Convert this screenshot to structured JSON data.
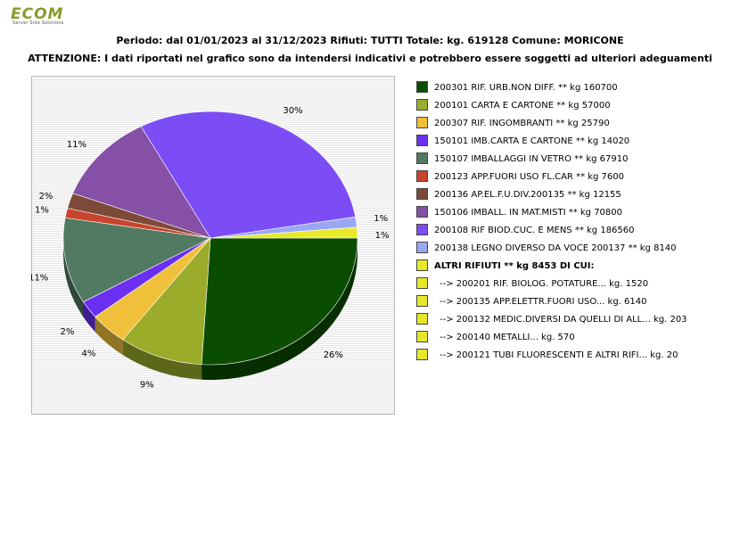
{
  "header": {
    "logo_text": "ECOM",
    "logo_sub": "Server Side Solutions",
    "title_line1": "Periodo: dal 01/01/2023 al 31/12/2023 Rifiuti: TUTTI   Totale: kg. 619128    Comune: MORICONE",
    "title_line2": "ATTENZIONE: I dati riportati nel grafico sono da intendersi indicativi e potrebbero essere soggetti ad ulteriori adeguamenti"
  },
  "chart_data": {
    "type": "pie",
    "title": "Periodo: dal 01/01/2023 al 31/12/2023 Rifiuti: TUTTI   Totale: kg. 619128    Comune: MORICONE",
    "total_kg": 619128,
    "slices": [
      {
        "code": "200301",
        "label": "200301 RIF. URB.NON DIFF. ** kg 160700",
        "value": 160700,
        "pct_label": "26%",
        "color": "#0b4d00"
      },
      {
        "code": "200101",
        "label": "200101 CARTA E CARTONE ** kg 57000",
        "value": 57000,
        "pct_label": "9%",
        "color": "#9bab2a"
      },
      {
        "code": "200307",
        "label": "200307 RIF. INGOMBRANTI ** kg 25790",
        "value": 25790,
        "pct_label": "4%",
        "color": "#f0c03a"
      },
      {
        "code": "150101",
        "label": "150101 IMB.CARTA E CARTONE ** kg 14020",
        "value": 14020,
        "pct_label": "2%",
        "color": "#6a2ff0"
      },
      {
        "code": "150107",
        "label": "150107 IMBALLAGGI IN VETRO ** kg 67910",
        "value": 67910,
        "pct_label": "11%",
        "color": "#527a62"
      },
      {
        "code": "200123",
        "label": "200123 APP.FUORI USO FL.CAR ** kg 7600",
        "value": 7600,
        "pct_label": "1%",
        "color": "#c8442c"
      },
      {
        "code": "200136",
        "label": "200136 AP.EL.F.U.DIV.200135 ** kg 12155",
        "value": 12155,
        "pct_label": "2%",
        "color": "#7d4a3a"
      },
      {
        "code": "150106",
        "label": "150106 IMBALL. IN MAT.MISTI ** kg 70800",
        "value": 70800,
        "pct_label": "11%",
        "color": "#8550a6"
      },
      {
        "code": "200108",
        "label": "200108 RIF BIOD.CUC. E MENS ** kg 186560",
        "value": 186560,
        "pct_label": "30%",
        "color": "#7c4df5"
      },
      {
        "code": "200138",
        "label": "200138 LEGNO DIVERSO DA VOCE 200137 ** kg 8140",
        "value": 8140,
        "pct_label": "1%",
        "color": "#98a8f5"
      },
      {
        "code": "ALTRI",
        "label": "ALTRI RIFIUTI ** kg 8453 DI CUI:",
        "value": 8453,
        "pct_label": "1%",
        "color": "#e8e82a"
      }
    ],
    "sub_items": [
      {
        "label": "-->  200201 RIF. BIOLOG. POTATURE... kg. 1520",
        "value": 1520,
        "color": "#e8e82a"
      },
      {
        "label": "-->  200135 APP.ELETTR.FUORI USO... kg. 6140",
        "value": 6140,
        "color": "#e8e82a"
      },
      {
        "label": "-->  200132 MEDIC.DIVERSI DA QUELLI DI ALL... kg. 203",
        "value": 203,
        "color": "#e8e82a"
      },
      {
        "label": "-->  200140 METALLI... kg. 570",
        "value": 570,
        "color": "#e8e82a"
      },
      {
        "label": "-->  200121 TUBI FLUORESCENTI E ALTRI RIFI... kg. 20",
        "value": 20,
        "color": "#e8e82a"
      }
    ],
    "legend_position": "right"
  }
}
